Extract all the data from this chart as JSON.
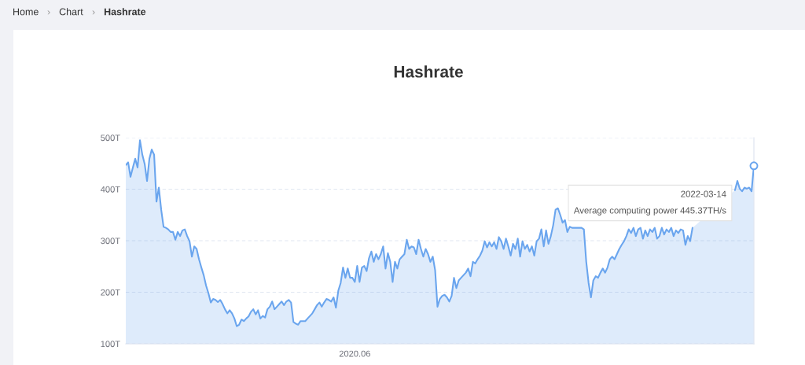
{
  "chart_data": {
    "type": "area",
    "title": "Hashrate",
    "color": "#6aa5ee",
    "grid": "y",
    "ylim": [
      100,
      500
    ],
    "yticks": [
      {
        "value": 100,
        "label": "100T"
      },
      {
        "value": 200,
        "label": "200T"
      },
      {
        "value": 300,
        "label": "300T"
      },
      {
        "value": 400,
        "label": "400T"
      },
      {
        "value": 500,
        "label": "500T"
      }
    ],
    "annotations": [
      "Home",
      "›",
      "Chart",
      "›",
      "Hashrate",
      "2022-03-14\nAverage computing power 445.37TH/s"
    ],
    "categories": [
      null,
      null,
      null,
      null,
      null,
      null,
      null,
      null,
      null,
      null,
      null,
      null,
      null,
      null,
      null,
      null,
      null,
      null,
      null,
      null,
      null,
      null,
      null,
      null,
      null,
      null,
      null,
      null,
      null,
      null,
      null,
      null,
      null,
      null,
      null,
      null,
      null,
      null,
      null,
      null,
      null,
      null,
      null,
      null,
      null,
      null,
      null,
      null,
      null,
      null,
      null,
      null,
      null,
      null,
      null,
      null,
      null,
      null,
      null,
      null,
      null,
      null,
      null,
      null,
      null,
      null,
      null,
      null,
      null,
      null,
      null,
      null,
      null,
      null,
      null,
      null,
      null,
      null,
      null,
      null,
      null,
      null,
      null,
      null,
      null,
      null,
      null,
      null,
      null,
      null,
      null,
      null,
      null,
      null,
      null,
      null,
      null,
      "2020.06",
      null,
      null,
      null,
      null,
      null,
      null,
      null,
      null,
      null,
      null,
      null,
      null,
      null,
      null,
      null,
      null,
      null,
      null,
      null,
      null,
      null,
      null,
      null,
      null,
      null,
      null,
      null,
      null,
      null,
      null,
      null,
      null,
      null,
      null,
      null,
      null,
      null,
      null,
      null,
      null,
      null,
      null,
      null,
      null,
      null,
      null,
      null,
      null,
      null,
      null,
      null,
      null,
      null,
      null,
      null,
      null,
      null,
      null,
      null,
      null,
      null,
      null,
      null,
      null,
      null,
      null,
      null,
      null,
      null,
      null,
      null,
      null,
      null,
      null,
      null,
      null,
      null,
      null,
      null,
      null,
      null,
      null,
      null,
      null,
      null,
      null,
      null,
      null,
      null,
      null,
      null,
      null,
      null,
      null,
      null,
      null,
      null,
      null,
      null,
      null,
      null,
      null,
      null,
      null,
      null,
      null,
      null,
      null,
      null,
      null,
      null,
      null,
      null,
      null,
      null,
      null,
      null,
      null,
      null,
      null,
      null,
      null,
      null,
      null,
      null,
      null,
      null,
      null,
      null,
      null,
      null,
      null,
      null,
      null,
      null,
      null,
      null,
      null,
      null,
      null,
      null,
      null,
      null,
      null,
      null,
      null,
      null,
      null,
      null,
      null,
      null,
      null,
      null,
      null,
      null,
      null,
      null,
      null,
      null,
      null,
      null,
      null,
      null,
      null,
      null,
      null,
      null,
      null,
      null
    ],
    "values": [
      447,
      452,
      424,
      442,
      459,
      442,
      495,
      467,
      449,
      416,
      459,
      477,
      467,
      376,
      403,
      360,
      327,
      325,
      322,
      317,
      317,
      302,
      317,
      309,
      320,
      322,
      309,
      299,
      269,
      289,
      284,
      264,
      248,
      233,
      213,
      198,
      180,
      187,
      185,
      181,
      185,
      177,
      167,
      159,
      165,
      159,
      149,
      134,
      137,
      147,
      144,
      149,
      153,
      162,
      167,
      157,
      165,
      149,
      154,
      151,
      167,
      172,
      182,
      167,
      172,
      177,
      182,
      175,
      182,
      185,
      180,
      142,
      139,
      137,
      144,
      144,
      144,
      149,
      154,
      159,
      167,
      175,
      180,
      172,
      180,
      187,
      185,
      182,
      190,
      170,
      203,
      218,
      248,
      228,
      246,
      228,
      228,
      220,
      251,
      220,
      248,
      251,
      241,
      266,
      279,
      259,
      274,
      264,
      274,
      289,
      246,
      276,
      259,
      220,
      259,
      246,
      264,
      269,
      274,
      302,
      284,
      289,
      287,
      274,
      302,
      284,
      269,
      284,
      274,
      259,
      269,
      243,
      172,
      187,
      193,
      195,
      190,
      182,
      193,
      228,
      208,
      223,
      228,
      233,
      238,
      246,
      231,
      259,
      256,
      264,
      271,
      281,
      299,
      287,
      297,
      289,
      297,
      284,
      307,
      299,
      284,
      304,
      289,
      271,
      294,
      284,
      304,
      269,
      299,
      284,
      292,
      279,
      289,
      271,
      299,
      304,
      322,
      289,
      320,
      294,
      309,
      330,
      360,
      363,
      350,
      335,
      340,
      317,
      327,
      325,
      325,
      325,
      325,
      325,
      322,
      259,
      218,
      190,
      223,
      231,
      228,
      238,
      246,
      238,
      248,
      264,
      269,
      264,
      274,
      284,
      292,
      299,
      309,
      322,
      315,
      325,
      309,
      322,
      325,
      304,
      320,
      309,
      322,
      317,
      325,
      304,
      309,
      325,
      312,
      322,
      317,
      325,
      309,
      320,
      315,
      322,
      320,
      292,
      309,
      299,
      325,
      null,
      null,
      null,
      null,
      null,
      null,
      null,
      null,
      null,
      null,
      null,
      null,
      null,
      null,
      null,
      null,
      null,
      398,
      416,
      401,
      396,
      403,
      401,
      403,
      396,
      445.37
    ]
  }
}
